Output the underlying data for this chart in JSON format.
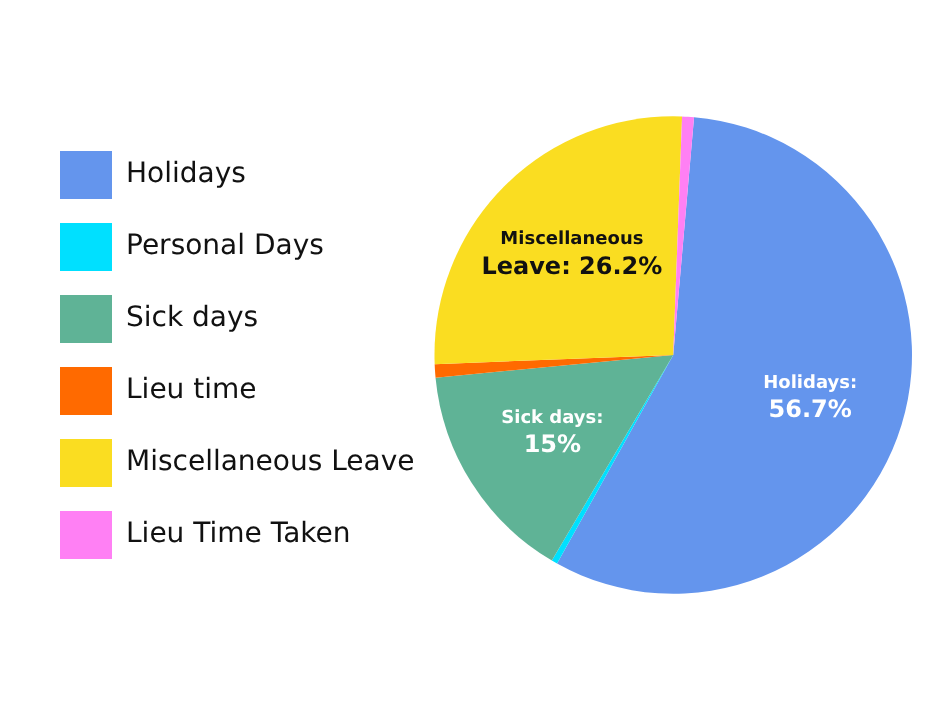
{
  "chart_data": {
    "type": "pie",
    "categories": [
      "Holidays",
      "Personal Days",
      "Sick days",
      "Lieu time",
      "Miscellaneous Leave",
      "Lieu Time Taken"
    ],
    "values": [
      56.7,
      0.4,
      15,
      0.9,
      26.2,
      0.8
    ],
    "colors": [
      "#6495ed",
      "#00e0ff",
      "#5fb396",
      "#ff6a00",
      "#fadd21",
      "#ff80f4"
    ],
    "value_labels": [
      "Holidays:\n56.7%",
      null,
      "Sick days:\n15%",
      null,
      "Miscellaneous\nLeave: 26.2%",
      null
    ],
    "legend": "left"
  }
}
